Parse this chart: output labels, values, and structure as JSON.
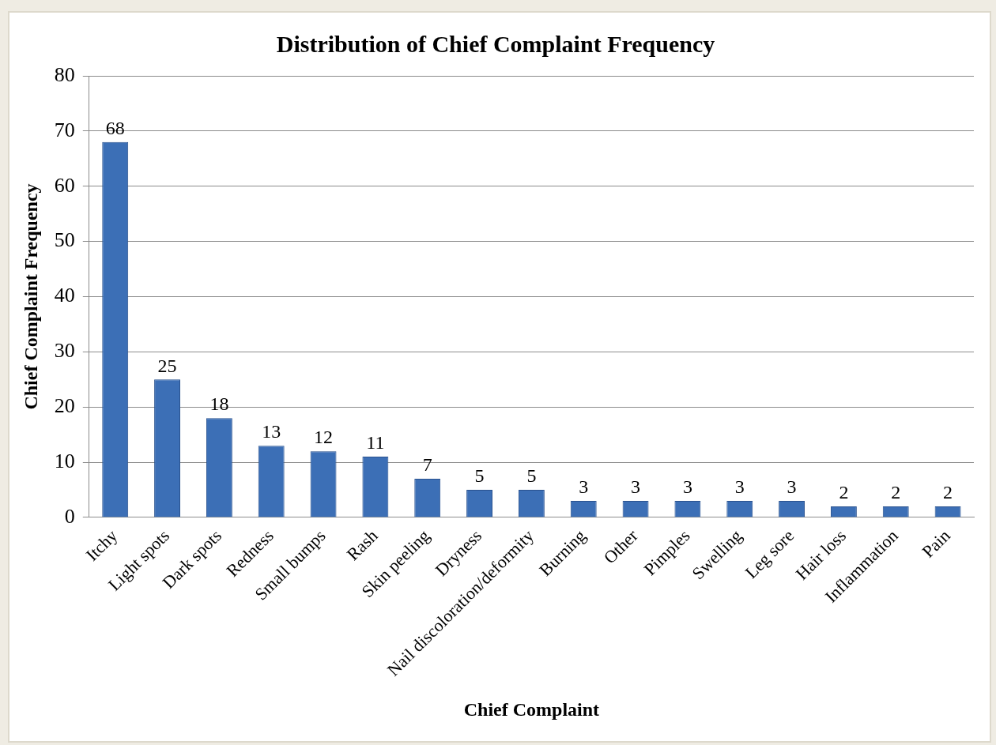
{
  "chart_data": {
    "type": "bar",
    "title": "Distribution of Chief Complaint Frequency",
    "xlabel": "Chief Complaint",
    "ylabel": "Chief Complaint Frequency",
    "categories": [
      "Itchy",
      "Light spots",
      "Dark spots",
      "Redness",
      "Small bumps",
      "Rash",
      "Skin peeling",
      "Dryness",
      "Nail discoloration/deformity",
      "Burning",
      "Other",
      "Pimples",
      "Swelling",
      "Leg sore",
      "Hair loss",
      "Inflammation",
      "Pain"
    ],
    "values": [
      68,
      25,
      18,
      13,
      12,
      11,
      7,
      5,
      5,
      3,
      3,
      3,
      3,
      3,
      2,
      2,
      2
    ],
    "color": "#3c6fb6",
    "ylim": [
      0,
      80
    ],
    "yticks": [
      0,
      10,
      20,
      30,
      40,
      50,
      60,
      70,
      80
    ],
    "grid": "y",
    "data_labels": true,
    "legend": false
  }
}
